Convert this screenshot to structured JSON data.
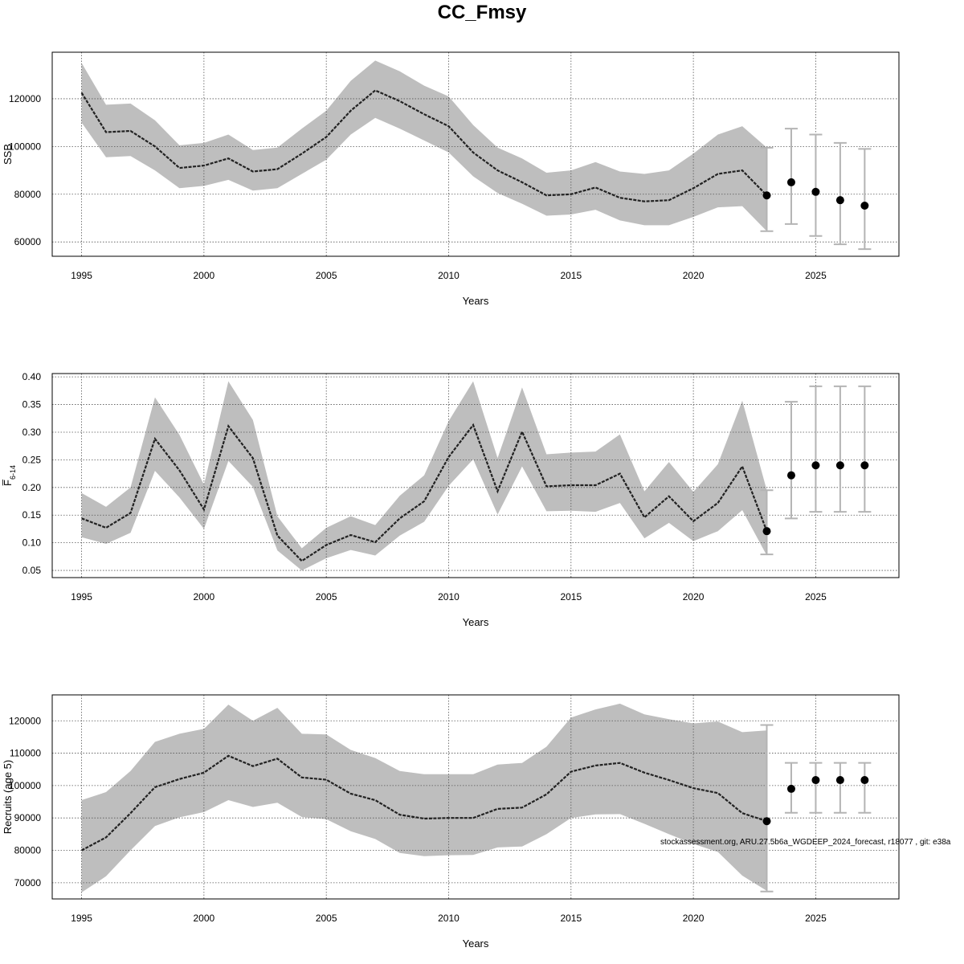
{
  "title": "CC_Fmsy",
  "footnote": "stockassessment.org, ARU.27.5b6a_WGDEEP_2024_forecast, r18077 , git: e38a",
  "colors": {
    "band": "#bebebe",
    "line": "#222222",
    "point": "#000000",
    "errorbar": "#b4b4b4",
    "grid": "#555555"
  },
  "chart_data": [
    {
      "type": "line",
      "name": "ssb",
      "xlabel": "Years",
      "ylabel": "SSB",
      "xlim": [
        1993.8,
        2028.4
      ],
      "ylim": [
        54000,
        139500
      ],
      "xticks": [
        1995,
        2000,
        2005,
        2010,
        2015,
        2020,
        2025
      ],
      "yticks": [
        60000,
        80000,
        100000,
        120000
      ],
      "grid": true,
      "x": [
        1995,
        1996,
        1997,
        1998,
        1999,
        2000,
        2001,
        2002,
        2003,
        2004,
        2005,
        2006,
        2007,
        2008,
        2009,
        2010,
        2011,
        2012,
        2013,
        2014,
        2015,
        2016,
        2017,
        2018,
        2019,
        2020,
        2021,
        2022,
        2023
      ],
      "estimate": [
        122500,
        106000,
        106500,
        100000,
        91000,
        92000,
        95000,
        89500,
        90500,
        97000,
        104000,
        115000,
        123500,
        119000,
        113500,
        108500,
        97500,
        90000,
        85000,
        79500,
        80000,
        82800,
        78500,
        77000,
        77500,
        82500,
        88500,
        90000,
        79500
      ],
      "upper": [
        135000,
        117500,
        118000,
        111000,
        100500,
        101500,
        105000,
        98500,
        99500,
        107500,
        115000,
        127500,
        136000,
        131500,
        125500,
        121000,
        109000,
        99500,
        95000,
        89000,
        90000,
        93500,
        89500,
        88500,
        90000,
        97000,
        105000,
        108500,
        99500
      ],
      "lower": [
        110000,
        95500,
        96000,
        90000,
        82500,
        83500,
        86000,
        81500,
        82500,
        88500,
        94500,
        105000,
        112000,
        107500,
        102500,
        97500,
        87500,
        80500,
        76000,
        71000,
        71500,
        73500,
        69000,
        67000,
        67000,
        70500,
        74500,
        75000,
        64500
      ],
      "forecast": {
        "x": [
          2023,
          2024,
          2025,
          2026,
          2027
        ],
        "estimate": [
          79500,
          85000,
          81000,
          77500,
          75200
        ],
        "upper": [
          99500,
          107500,
          105000,
          101500,
          99000
        ],
        "lower": [
          64500,
          67500,
          62500,
          59000,
          57000
        ]
      }
    },
    {
      "type": "line",
      "name": "fbar",
      "xlabel": "Years",
      "ylabel": "F̅",
      "ylabel_sub": "6-14",
      "xlim": [
        1993.8,
        2028.4
      ],
      "ylim": [
        0.037,
        0.406
      ],
      "xticks": [
        1995,
        2000,
        2005,
        2010,
        2015,
        2020,
        2025
      ],
      "yticks": [
        "0.05",
        "0.10",
        "0.15",
        "0.20",
        "0.25",
        "0.30",
        "0.35",
        "0.40"
      ],
      "grid": true,
      "x": [
        1995,
        1996,
        1997,
        1998,
        1999,
        2000,
        2001,
        2002,
        2003,
        2004,
        2005,
        2006,
        2007,
        2008,
        2009,
        2010,
        2011,
        2012,
        2013,
        2014,
        2015,
        2016,
        2017,
        2018,
        2019,
        2020,
        2021,
        2022,
        2023
      ],
      "estimate": [
        0.144,
        0.127,
        0.154,
        0.288,
        0.231,
        0.16,
        0.311,
        0.253,
        0.113,
        0.067,
        0.096,
        0.114,
        0.101,
        0.144,
        0.175,
        0.255,
        0.313,
        0.193,
        0.301,
        0.202,
        0.204,
        0.204,
        0.225,
        0.146,
        0.184,
        0.139,
        0.172,
        0.238,
        0.121
      ],
      "upper": [
        0.19,
        0.165,
        0.2,
        0.363,
        0.295,
        0.205,
        0.392,
        0.322,
        0.148,
        0.09,
        0.127,
        0.148,
        0.132,
        0.185,
        0.222,
        0.32,
        0.392,
        0.253,
        0.381,
        0.26,
        0.263,
        0.265,
        0.296,
        0.193,
        0.246,
        0.192,
        0.242,
        0.357,
        0.195
      ],
      "lower": [
        0.11,
        0.098,
        0.118,
        0.23,
        0.182,
        0.125,
        0.248,
        0.201,
        0.086,
        0.05,
        0.072,
        0.087,
        0.077,
        0.113,
        0.138,
        0.203,
        0.251,
        0.151,
        0.238,
        0.157,
        0.158,
        0.156,
        0.172,
        0.108,
        0.136,
        0.103,
        0.121,
        0.159,
        0.077
      ],
      "forecast": {
        "x": [
          2023,
          2024,
          2025,
          2026,
          2027
        ],
        "estimate": [
          0.121,
          0.222,
          0.24,
          0.24,
          0.24
        ],
        "upper": [
          0.195,
          0.355,
          0.383,
          0.383,
          0.383
        ],
        "lower": [
          0.079,
          0.144,
          0.156,
          0.156,
          0.156
        ]
      }
    },
    {
      "type": "line",
      "name": "recruits",
      "xlabel": "Years",
      "ylabel": "Recruits (age 5)",
      "xlim": [
        1993.8,
        2028.4
      ],
      "ylim": [
        65000,
        128000
      ],
      "xticks": [
        1995,
        2000,
        2005,
        2010,
        2015,
        2020,
        2025
      ],
      "yticks": [
        70000,
        80000,
        90000,
        100000,
        110000,
        120000
      ],
      "grid": true,
      "x": [
        1995,
        1996,
        1997,
        1998,
        1999,
        2000,
        2001,
        2002,
        2003,
        2004,
        2005,
        2006,
        2007,
        2008,
        2009,
        2010,
        2011,
        2012,
        2013,
        2014,
        2015,
        2016,
        2017,
        2018,
        2019,
        2020,
        2021,
        2022,
        2023
      ],
      "estimate": [
        80000,
        84000,
        91500,
        99500,
        102000,
        104000,
        109200,
        106000,
        108300,
        102500,
        101800,
        97500,
        95500,
        91000,
        89800,
        90000,
        90000,
        92800,
        93200,
        97300,
        104300,
        106200,
        107000,
        104000,
        101700,
        99200,
        97700,
        91500,
        89000
      ],
      "upper": [
        95500,
        98000,
        104500,
        113500,
        116000,
        117500,
        125000,
        120000,
        124000,
        116000,
        115800,
        111000,
        108500,
        104500,
        103500,
        103500,
        103500,
        106500,
        107000,
        112000,
        121000,
        123500,
        125300,
        122000,
        120500,
        119200,
        119800,
        116500,
        117000
      ],
      "lower": [
        67000,
        72000,
        80000,
        87500,
        90200,
        91800,
        95500,
        93400,
        94700,
        90300,
        89600,
        85900,
        83500,
        79200,
        78200,
        78500,
        78600,
        80900,
        81200,
        85000,
        90000,
        91100,
        91200,
        88200,
        85000,
        82000,
        79500,
        72200,
        67500
      ],
      "forecast": {
        "x": [
          2023,
          2024,
          2025,
          2026,
          2027
        ],
        "estimate": [
          89000,
          99000,
          101700,
          101700,
          101700
        ],
        "upper": [
          118700,
          107000,
          107000,
          107000,
          107000
        ],
        "lower": [
          67300,
          91600,
          91600,
          91600,
          91600
        ]
      }
    }
  ]
}
